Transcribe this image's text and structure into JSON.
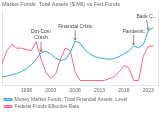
{
  "chart_data": {
    "type": "line",
    "title": "Market Funds: Total Assets ($ Mil) vs Fed Funds",
    "x": [
      1993,
      1994,
      1995,
      1996,
      1997,
      1998,
      1999,
      2000,
      2001,
      2002,
      2003,
      2004,
      2005,
      2006,
      2007,
      2008,
      2009,
      2010,
      2011,
      2012,
      2013,
      2014,
      2015,
      2016,
      2017,
      2018,
      2019,
      2020,
      2021,
      2022,
      2023,
      2024
    ],
    "series": [
      {
        "name": "Money Market Funds, Total Financial Assets, Level",
        "values": [
          0.12,
          0.13,
          0.15,
          0.17,
          0.2,
          0.24,
          0.3,
          0.38,
          0.48,
          0.5,
          0.46,
          0.4,
          0.36,
          0.38,
          0.48,
          0.65,
          0.62,
          0.52,
          0.46,
          0.42,
          0.4,
          0.39,
          0.38,
          0.39,
          0.42,
          0.46,
          0.5,
          0.58,
          0.55,
          0.6,
          0.8,
          0.85
        ]
      },
      {
        "name": "Federal Funds Effective Rate",
        "axis": "y2",
        "values": [
          0.28,
          0.48,
          0.58,
          0.52,
          0.52,
          0.5,
          0.48,
          0.62,
          0.35,
          0.15,
          0.05,
          0.12,
          0.35,
          0.52,
          0.48,
          0.15,
          0.02,
          0.02,
          0.02,
          0.02,
          0.02,
          0.02,
          0.05,
          0.08,
          0.15,
          0.25,
          0.22,
          0.02,
          0.02,
          0.4,
          0.55,
          0.55
        ]
      }
    ],
    "xlim": [
      1993,
      2025
    ],
    "xticks": [
      1998,
      2003,
      2008,
      2013,
      2018,
      2023
    ],
    "ylim": [
      0.0,
      1.1
    ],
    "y2lim": [
      -0.05,
      1.1
    ],
    "tick_labels": "x",
    "grid": false,
    "legend": "lower left",
    "annotations": [
      {
        "text": "Dot-Com\nCrash",
        "x": 2001,
        "y": 0.48
      },
      {
        "text": "Financial Crisis",
        "x": 2008,
        "y": 0.65
      },
      {
        "text": "Pandemic",
        "x": 2020,
        "y": 0.58
      },
      {
        "text": "Bank C...",
        "x": 2023,
        "y": 0.8
      }
    ]
  }
}
